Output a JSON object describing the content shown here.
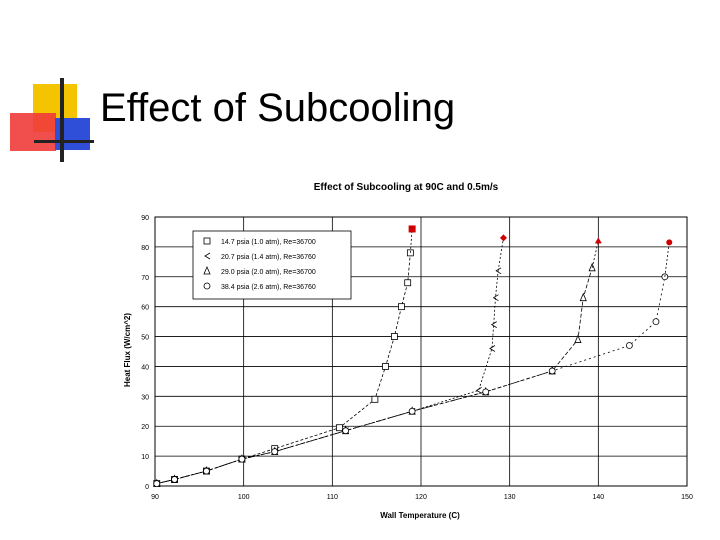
{
  "slide": {
    "title": "Effect of Subcooling"
  },
  "colors": {
    "logo_yellow": "#f5c400",
    "logo_red": "#ef3b3b",
    "logo_blue": "#2f4fd8",
    "logo_dark": "#222222",
    "burnout_marker": "#d00000"
  },
  "chart_data": {
    "type": "line",
    "title": "Effect of Subcooling at 90C and 0.5m/s",
    "xlabel": "Wall Temperature (C)",
    "ylabel": "Heat Flux (W/cm^2)",
    "xlim": [
      90,
      150
    ],
    "ylim": [
      0,
      90
    ],
    "xticks": [
      90,
      100,
      110,
      120,
      130,
      140,
      150
    ],
    "yticks": [
      0,
      10,
      20,
      30,
      40,
      50,
      60,
      70,
      80,
      90
    ],
    "grid": true,
    "legend_position": "top-left",
    "series": [
      {
        "name": "14.7 psia (1.0 atm), Re=36700",
        "marker": "square",
        "x": [
          90.2,
          92.2,
          95.8,
          99.8,
          103.5,
          110.8,
          114.8,
          116,
          117,
          117.8,
          118.5,
          118.8
        ],
        "y": [
          0.8,
          2.2,
          5,
          9,
          12.5,
          19.5,
          29,
          40,
          50,
          60,
          68,
          78
        ],
        "burnout": {
          "x": 119,
          "y": 86
        }
      },
      {
        "name": "20.7 psia (1.4 atm), Re=36760",
        "marker": "chevron",
        "x": [
          90.2,
          92.2,
          95.8,
          99.8,
          103.5,
          111.5,
          119,
          126.5,
          128,
          128.2,
          128.4,
          128.7
        ],
        "y": [
          0.8,
          2.2,
          5,
          9,
          11.5,
          18.5,
          25,
          32,
          46,
          54,
          63,
          72
        ],
        "burnout": {
          "x": 129.3,
          "y": 83
        }
      },
      {
        "name": "29.0 psia (2.0 atm), Re=36700",
        "marker": "triangle",
        "x": [
          90.2,
          92.2,
          95.8,
          99.8,
          103.5,
          111.5,
          119,
          127.3,
          134.8,
          137.7,
          138.3,
          139.3
        ],
        "y": [
          0.8,
          2.2,
          5,
          9,
          11.5,
          18.5,
          25,
          31.5,
          38.5,
          49,
          63,
          73
        ],
        "burnout": {
          "x": 140,
          "y": 82
        }
      },
      {
        "name": "38.4 psia (2.6 atm), Re=36760",
        "marker": "circle",
        "x": [
          90.2,
          92.2,
          95.8,
          99.8,
          103.5,
          111.5,
          119,
          127.3,
          134.8,
          143.5,
          146.5,
          147.5
        ],
        "y": [
          0.8,
          2.2,
          5,
          9,
          11.5,
          18.5,
          25,
          31.5,
          38.5,
          47,
          55,
          70
        ],
        "burnout": {
          "x": 148,
          "y": 81.5
        }
      }
    ]
  }
}
